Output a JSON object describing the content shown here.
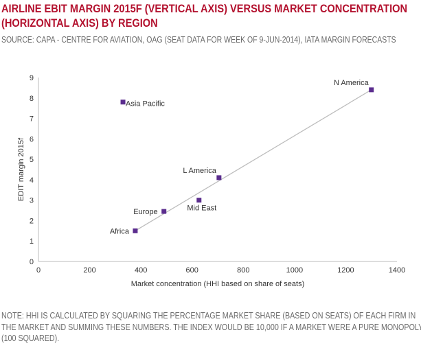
{
  "header": {
    "title_line1": "AIRLINE EBIT MARGIN 2015F (VERTICAL AXIS) VERSUS MARKET CONCENTRATION",
    "title_line2": "(HORIZONTAL AXIS) BY REGION",
    "source": "SOURCE: CAPA - CENTRE FOR AVIATION, OAG (SEAT DATA FOR WEEK OF 9-JUN-2014), IATA MARGIN FORECASTS"
  },
  "footer": {
    "note_line1": "NOTE: HHI IS CALCULATED BY SQUARING THE PERCENTAGE MARKET SHARE (BASED ON SEATS) OF EACH FIRM IN",
    "note_line2": "THE MARKET AND SUMMING THESE NUMBERS. THE INDEX WOULD BE 10,000 IF A MARKET WERE A PURE MONOPOLY",
    "note_line3": "(100 SQUARED)."
  },
  "colors": {
    "title": "#b3112e",
    "marker": "#5b2d8e",
    "trendline": "#bdbdbd",
    "axis": "#bbbbbb"
  },
  "chart_data": {
    "type": "scatter",
    "xlabel": "Market concentration (HHI based on share of seats)",
    "ylabel": "EDIT margin 2015f",
    "xlim": [
      0,
      1400
    ],
    "ylim": [
      0,
      9
    ],
    "xticks": [
      0,
      200,
      400,
      600,
      800,
      1000,
      1200,
      1400
    ],
    "yticks": [
      0,
      1,
      2,
      3,
      4,
      5,
      6,
      7,
      8,
      9
    ],
    "grid": false,
    "points": [
      {
        "label": "N America",
        "x": 1300,
        "y": 8.4,
        "label_pos": "top-left"
      },
      {
        "label": "Asia Pacific",
        "x": 330,
        "y": 7.8,
        "label_pos": "right"
      },
      {
        "label": "L America",
        "x": 705,
        "y": 4.1,
        "label_pos": "top-left"
      },
      {
        "label": "Mid East",
        "x": 627,
        "y": 3.0,
        "label_pos": "below"
      },
      {
        "label": "Europe",
        "x": 490,
        "y": 2.45,
        "label_pos": "left"
      },
      {
        "label": "Africa",
        "x": 378,
        "y": 1.5,
        "label_pos": "left"
      }
    ],
    "trendline": {
      "x": [
        378,
        1300
      ],
      "y": [
        1.5,
        8.4
      ]
    }
  }
}
